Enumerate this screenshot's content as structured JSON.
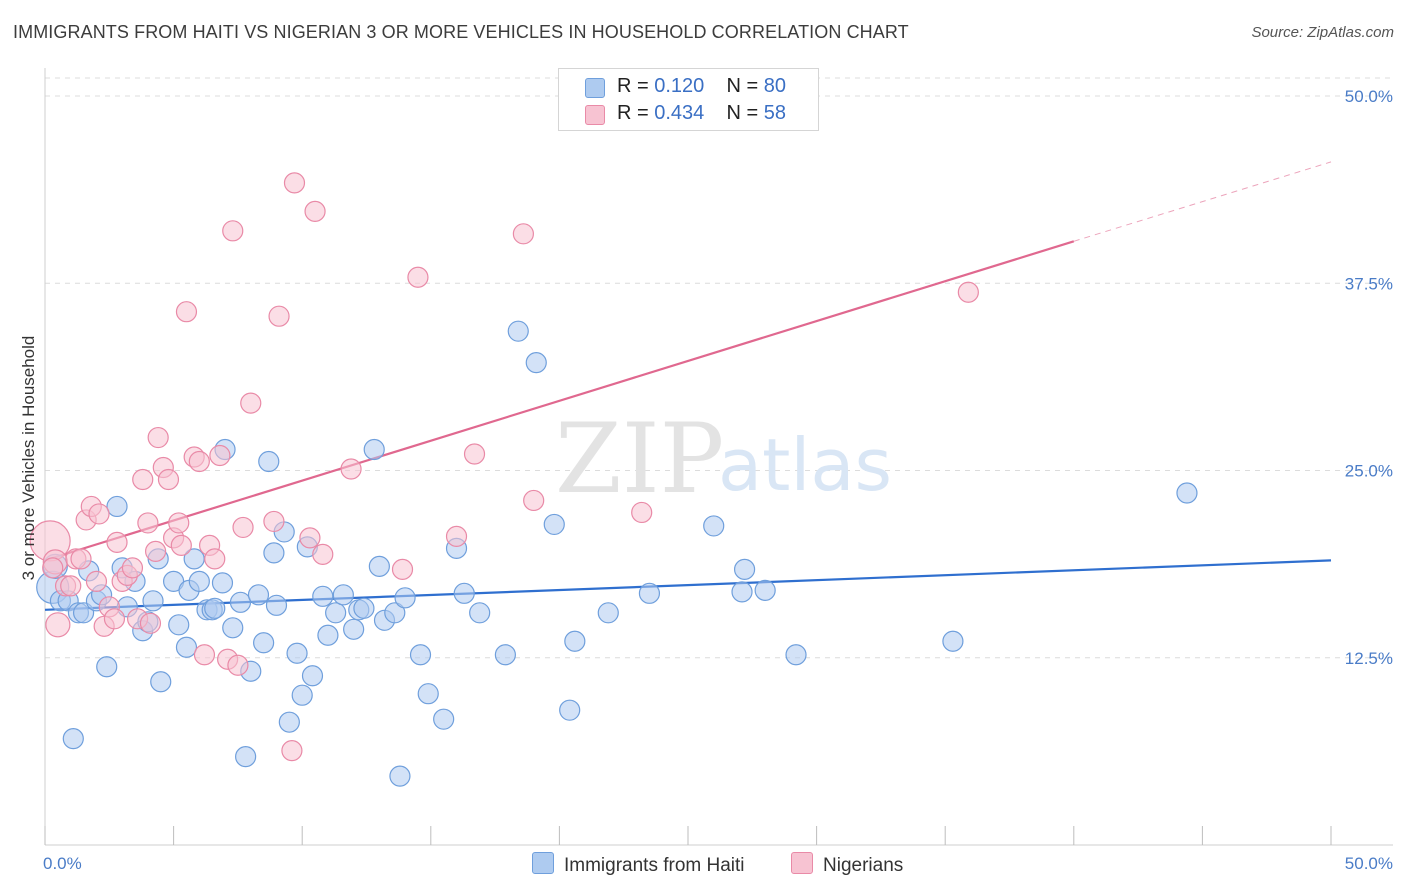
{
  "title": "IMMIGRANTS FROM HAITI VS NIGERIAN 3 OR MORE VEHICLES IN HOUSEHOLD CORRELATION CHART",
  "source": "Source: ZipAtlas.com",
  "watermark": {
    "zip": "ZIP",
    "atlas": "atlas"
  },
  "legend": {
    "rows": [
      {
        "r_label": "R =",
        "r_value": "0.120",
        "n_label": "N =",
        "n_value": "80"
      },
      {
        "r_label": "R =",
        "r_value": "0.434",
        "n_label": "N =",
        "n_value": "58"
      }
    ]
  },
  "bottom_legend": {
    "haiti": "Immigrants from Haiti",
    "nigerians": "Nigerians"
  },
  "colors": {
    "haiti_fill": "#aecbf0",
    "haiti_stroke": "#6f9fdc",
    "haiti_line": "#2f6fcf",
    "nig_fill": "#f7c3d2",
    "nig_stroke": "#e98aa7",
    "nig_line": "#e0688f",
    "grid": "#dcdcdc",
    "axis_text": "#4a7cc7"
  },
  "chart_data": {
    "type": "scatter",
    "title": "IMMIGRANTS FROM HAITI VS NIGERIAN 3 OR MORE VEHICLES IN HOUSEHOLD CORRELATION CHART",
    "xlabel": "",
    "ylabel": "3 or more Vehicles in Household",
    "xlim": [
      0,
      50
    ],
    "ylim": [
      0,
      50
    ],
    "x_tick_labels": [
      "0.0%",
      "50.0%"
    ],
    "y_tick_labels": [
      {
        "v": 12.5,
        "label": "12.5%"
      },
      {
        "v": 25,
        "label": "25.0%"
      },
      {
        "v": 37.5,
        "label": "37.5%"
      },
      {
        "v": 50,
        "label": "50.0%"
      }
    ],
    "grid": true,
    "legend_position": "top-center",
    "series": [
      {
        "name": "Immigrants from Haiti",
        "R": 0.12,
        "N": 80,
        "trend": {
          "x0": 0,
          "y0": 15.7,
          "x1": 50,
          "y1": 19.0
        },
        "points": [
          [
            0.3,
            17.2,
            16
          ],
          [
            0.6,
            16.3,
            10
          ],
          [
            0.9,
            16.3,
            10
          ],
          [
            1.1,
            7.1,
            10
          ],
          [
            1.3,
            15.5,
            10
          ],
          [
            1.5,
            15.5,
            10
          ],
          [
            1.7,
            18.3,
            10
          ],
          [
            2.0,
            16.3,
            10
          ],
          [
            2.2,
            16.7,
            10
          ],
          [
            2.4,
            11.9,
            10
          ],
          [
            2.8,
            22.6,
            10
          ],
          [
            3.0,
            18.5,
            10
          ],
          [
            3.2,
            15.9,
            10
          ],
          [
            3.5,
            17.6,
            10
          ],
          [
            3.8,
            14.3,
            10
          ],
          [
            4.0,
            14.9,
            10
          ],
          [
            4.2,
            16.3,
            10
          ],
          [
            4.4,
            19.1,
            10
          ],
          [
            4.5,
            10.9,
            10
          ],
          [
            5.0,
            17.6,
            10
          ],
          [
            5.2,
            14.7,
            10
          ],
          [
            5.5,
            13.2,
            10
          ],
          [
            5.6,
            17.0,
            10
          ],
          [
            5.8,
            19.1,
            10
          ],
          [
            6.0,
            17.6,
            10
          ],
          [
            6.3,
            15.7,
            10
          ],
          [
            6.5,
            15.7,
            10
          ],
          [
            6.6,
            15.8,
            10
          ],
          [
            6.9,
            17.5,
            10
          ],
          [
            7.0,
            26.4,
            10
          ],
          [
            7.3,
            14.5,
            10
          ],
          [
            7.6,
            16.2,
            10
          ],
          [
            7.8,
            5.9,
            10
          ],
          [
            8.0,
            11.6,
            10
          ],
          [
            8.3,
            16.7,
            10
          ],
          [
            8.5,
            13.5,
            10
          ],
          [
            8.7,
            25.6,
            10
          ],
          [
            8.9,
            19.5,
            10
          ],
          [
            9.0,
            16.0,
            10
          ],
          [
            9.3,
            20.9,
            10
          ],
          [
            9.5,
            8.2,
            10
          ],
          [
            9.8,
            12.8,
            10
          ],
          [
            10.0,
            10.0,
            10
          ],
          [
            10.2,
            19.9,
            10
          ],
          [
            10.4,
            11.3,
            10
          ],
          [
            10.8,
            16.6,
            10
          ],
          [
            11.0,
            14.0,
            10
          ],
          [
            11.3,
            15.5,
            10
          ],
          [
            11.6,
            16.7,
            10
          ],
          [
            12.0,
            14.4,
            10
          ],
          [
            12.2,
            15.7,
            10
          ],
          [
            12.4,
            15.8,
            10
          ],
          [
            12.8,
            26.4,
            10
          ],
          [
            13.0,
            18.6,
            10
          ],
          [
            13.2,
            15.0,
            10
          ],
          [
            13.6,
            15.5,
            10
          ],
          [
            13.8,
            4.6,
            10
          ],
          [
            14.0,
            16.5,
            10
          ],
          [
            14.6,
            12.7,
            10
          ],
          [
            14.9,
            10.1,
            10
          ],
          [
            15.5,
            8.4,
            10
          ],
          [
            16.0,
            19.8,
            10
          ],
          [
            16.3,
            16.8,
            10
          ],
          [
            16.9,
            15.5,
            10
          ],
          [
            17.9,
            12.7,
            10
          ],
          [
            18.4,
            34.3,
            10
          ],
          [
            19.1,
            32.2,
            10
          ],
          [
            19.8,
            21.4,
            10
          ],
          [
            20.4,
            9.0,
            10
          ],
          [
            20.6,
            13.6,
            10
          ],
          [
            21.9,
            15.5,
            10
          ],
          [
            23.5,
            16.8,
            10
          ],
          [
            26.0,
            21.3,
            10
          ],
          [
            27.1,
            16.9,
            10
          ],
          [
            27.2,
            18.4,
            10
          ],
          [
            28.0,
            17.0,
            10
          ],
          [
            29.2,
            12.7,
            10
          ],
          [
            35.3,
            13.6,
            10
          ],
          [
            44.4,
            23.5,
            10
          ],
          [
            0.4,
            18.6,
            12
          ]
        ]
      },
      {
        "name": "Nigerians",
        "R": 0.434,
        "N": 58,
        "trend": {
          "x0": 0,
          "y0": 19.0,
          "x1": 40,
          "y1": 40.3,
          "dash_to_x": 50,
          "dash_to_y": 45.6
        },
        "points": [
          [
            0.2,
            20.3,
            20
          ],
          [
            0.4,
            18.9,
            12
          ],
          [
            0.5,
            14.7,
            12
          ],
          [
            0.8,
            17.3,
            10
          ],
          [
            1.0,
            17.3,
            10
          ],
          [
            1.2,
            19.1,
            10
          ],
          [
            1.4,
            19.1,
            10
          ],
          [
            1.6,
            21.7,
            10
          ],
          [
            1.8,
            22.6,
            10
          ],
          [
            2.0,
            17.6,
            10
          ],
          [
            2.1,
            22.1,
            10
          ],
          [
            2.3,
            14.6,
            10
          ],
          [
            2.5,
            15.9,
            10
          ],
          [
            2.7,
            15.1,
            10
          ],
          [
            2.8,
            20.2,
            10
          ],
          [
            3.0,
            17.6,
            10
          ],
          [
            3.2,
            18.0,
            10
          ],
          [
            3.4,
            18.5,
            10
          ],
          [
            3.6,
            15.1,
            10
          ],
          [
            3.8,
            24.4,
            10
          ],
          [
            4.0,
            21.5,
            10
          ],
          [
            4.1,
            14.8,
            10
          ],
          [
            4.3,
            19.6,
            10
          ],
          [
            4.4,
            27.2,
            10
          ],
          [
            4.6,
            25.2,
            10
          ],
          [
            4.8,
            24.4,
            10
          ],
          [
            5.0,
            20.5,
            10
          ],
          [
            5.2,
            21.5,
            10
          ],
          [
            5.3,
            20.0,
            10
          ],
          [
            5.5,
            35.6,
            10
          ],
          [
            5.8,
            25.9,
            10
          ],
          [
            6.0,
            25.6,
            10
          ],
          [
            6.2,
            12.7,
            10
          ],
          [
            6.4,
            20.0,
            10
          ],
          [
            6.6,
            19.1,
            10
          ],
          [
            6.8,
            26.0,
            10
          ],
          [
            7.1,
            12.4,
            10
          ],
          [
            7.3,
            41.0,
            10
          ],
          [
            7.5,
            12.0,
            10
          ],
          [
            7.7,
            21.2,
            10
          ],
          [
            8.0,
            29.5,
            10
          ],
          [
            8.9,
            21.6,
            10
          ],
          [
            9.1,
            35.3,
            10
          ],
          [
            9.6,
            6.3,
            10
          ],
          [
            9.7,
            44.2,
            10
          ],
          [
            10.3,
            20.5,
            10
          ],
          [
            10.5,
            42.3,
            10
          ],
          [
            10.8,
            19.4,
            10
          ],
          [
            11.9,
            25.1,
            10
          ],
          [
            13.9,
            18.4,
            10
          ],
          [
            14.5,
            37.9,
            10
          ],
          [
            16.0,
            20.6,
            10
          ],
          [
            16.7,
            26.1,
            10
          ],
          [
            18.6,
            40.8,
            10
          ],
          [
            19.0,
            23.0,
            10
          ],
          [
            23.2,
            22.2,
            10
          ],
          [
            35.9,
            36.9,
            10
          ],
          [
            0.3,
            18.5,
            10
          ]
        ]
      }
    ]
  }
}
